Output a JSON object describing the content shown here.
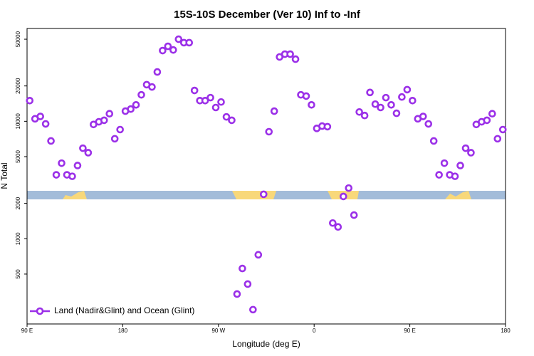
{
  "chart_data": {
    "type": "scatter",
    "title": "15S-10S December (Ver 10)   Inf to -Inf",
    "x_label": "Longitude (deg E)",
    "y_label": "N Total",
    "xlim": [
      90,
      540
    ],
    "xticks": [
      {
        "value": 90,
        "label": "90 E"
      },
      180,
      {
        "value": 270,
        "label": "90 W"
      },
      {
        "value": 360,
        "label": "0"
      },
      {
        "value": 450,
        "label": "90 E"
      },
      {
        "value": 540,
        "label": "180"
      }
    ],
    "ylim": [
      188,
      61700
    ],
    "yticks": [
      500,
      1000,
      2000,
      5000,
      10000,
      20000,
      50000
    ],
    "log_y": true,
    "legend": "bottom-left",
    "x": [
      92.5,
      97.5,
      102.5,
      107.5,
      112.5,
      117.5,
      122.5,
      127.5,
      132.5,
      137.5,
      142.5,
      147.5,
      152.5,
      157.5,
      162.5,
      167.5,
      172.5,
      177.5,
      182.5,
      187.5,
      192.5,
      197.5,
      202.5,
      207.5,
      212.5,
      217.5,
      222.5,
      227.5,
      232.5,
      237.5,
      242.5,
      247.5,
      252.5,
      257.5,
      262.5,
      267.5,
      272.5,
      277.5,
      282.5,
      287.5,
      292.5,
      297.5,
      302.5,
      307.5,
      312.5,
      317.5,
      322.5,
      327.5,
      332.5,
      337.5,
      342.5,
      347.5,
      352.5,
      357.5,
      362.5,
      367.5,
      372.5,
      377.5,
      382.5,
      387.5,
      392.5,
      397.5,
      402.5,
      407.5,
      412.5,
      417.5,
      422.5,
      427.5,
      432.5,
      437.5,
      442.5,
      447.5,
      452.5,
      457.5,
      462.5,
      467.5,
      472.5,
      477.5,
      482.5,
      487.5,
      492.5,
      497.5,
      502.5,
      507.5,
      512.5,
      517.5,
      522.5,
      527.5,
      532.5,
      537.5
    ],
    "series": [
      {
        "name": "Land (Nadir&Glint) and Ocean (Glint)",
        "color": "#9b30e8",
        "values": [
          15000,
          10500,
          11000,
          9500,
          6800,
          3500,
          4400,
          3500,
          3400,
          4200,
          5900,
          5400,
          9400,
          9900,
          10200,
          11600,
          7100,
          8500,
          12200,
          12700,
          13800,
          16800,
          20500,
          19600,
          26300,
          40000,
          43500,
          40500,
          50000,
          46700,
          46700,
          18300,
          15000,
          15000,
          15900,
          13100,
          14600,
          10900,
          10200,
          338,
          558,
          411,
          249,
          730,
          2390,
          8150,
          12200,
          35300,
          37300,
          37300,
          33800,
          16800,
          16400,
          13800,
          8700,
          9100,
          9000,
          1360,
          1260,
          2290,
          2700,
          1590,
          12000,
          11200,
          17600,
          14000,
          13100,
          15900,
          13800,
          11700,
          16100,
          18600,
          15000,
          10500,
          11000,
          9500,
          6800,
          3500,
          4400,
          3500,
          3400,
          4200,
          5900,
          5400,
          9400,
          9900,
          10200,
          11600,
          7100,
          8500
        ]
      }
    ]
  }
}
